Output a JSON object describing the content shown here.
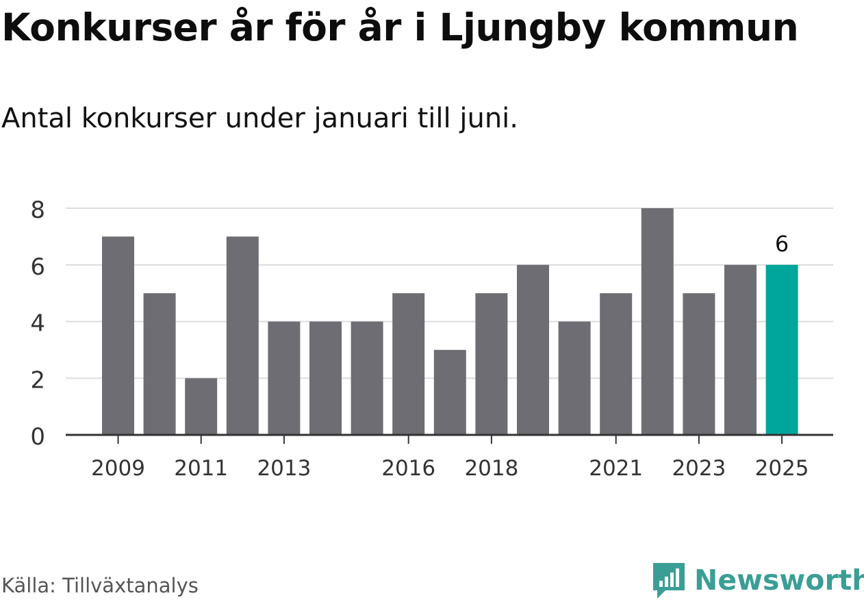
{
  "title": "Konkurser år för år i Ljungby kommun",
  "subtitle": "Antal konkurser under januari till juni.",
  "source": "Källa: Tillväxtanalys",
  "brand": "Newsworthy",
  "colors": {
    "bar": "#6e6d73",
    "highlight": "#00a69a",
    "grid": "#dcdcdc",
    "axis": "#333333",
    "brand": "#3a9e96"
  },
  "chart_data": {
    "type": "bar",
    "categories": [
      "2009",
      "2010",
      "2011",
      "2012",
      "2013",
      "2014",
      "2015",
      "2016",
      "2017",
      "2018",
      "2019",
      "2020",
      "2021",
      "2022",
      "2023",
      "2024",
      "2025"
    ],
    "values": [
      7,
      5,
      2,
      7,
      4,
      4,
      4,
      5,
      3,
      5,
      6,
      4,
      5,
      8,
      5,
      6,
      6
    ],
    "x_tick_labels": [
      "2009",
      "2011",
      "2013",
      "2016",
      "2018",
      "2021",
      "2023",
      "2025"
    ],
    "y_ticks": [
      "0",
      "2",
      "4",
      "6",
      "8"
    ],
    "ylim": [
      0,
      8
    ],
    "highlight_category": "2025",
    "data_labels": [
      {
        "category": "2025",
        "text": "6"
      }
    ],
    "grid": true
  }
}
